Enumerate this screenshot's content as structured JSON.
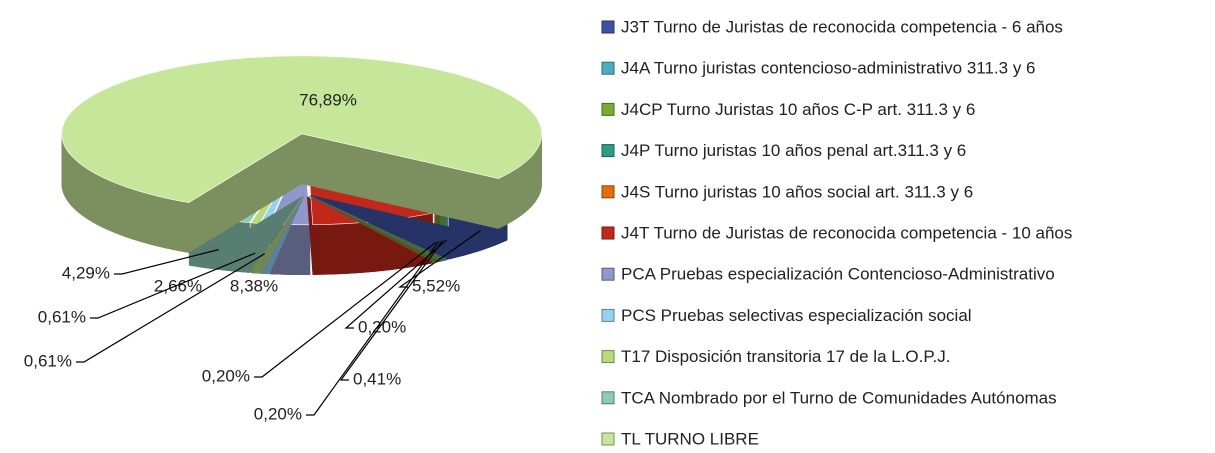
{
  "chart_data": {
    "type": "pie",
    "categories": [
      "J3T Turno de Juristas de reconocida competencia - 6 años",
      "J4A Turno juristas contencioso-administrativo 311.3 y 6",
      "J4CP Turno Juristas 10 años C-P art. 311.3 y 6",
      "J4P Turno juristas 10 años penal art.311.3 y 6",
      "J4S Turno juristas 10 años social art. 311.3 y 6",
      "J4T Turno de Juristas de reconocida competencia - 10 años",
      "PCA Pruebas especialización Contencioso-Administrativo",
      "PCS Pruebas selectivas especialización social",
      "T17 Disposición transitoria 17 de la L.O.P.J.",
      "TCA Nombrado por el Turno de Comunidades Autónomas",
      "TL TURNO LIBRE"
    ],
    "values": [
      5.52,
      0.2,
      0.41,
      0.2,
      0.2,
      8.38,
      2.66,
      0.61,
      0.61,
      4.29,
      76.89
    ],
    "value_labels": [
      "5,52%",
      "0,20%",
      "0,41%",
      "0,20%",
      "0,20%",
      "8,38%",
      "2,66%",
      "0,61%",
      "0,61%",
      "4,29%",
      "76,89%"
    ],
    "colors": [
      "#3c52a4",
      "#4bacc6",
      "#7aac2f",
      "#2e9c84",
      "#e46c0a",
      "#c0281c",
      "#8f97cc",
      "#93d2f0",
      "#b6dc7a",
      "#8dcbb4",
      "#c6e79a"
    ],
    "legend": "right"
  }
}
